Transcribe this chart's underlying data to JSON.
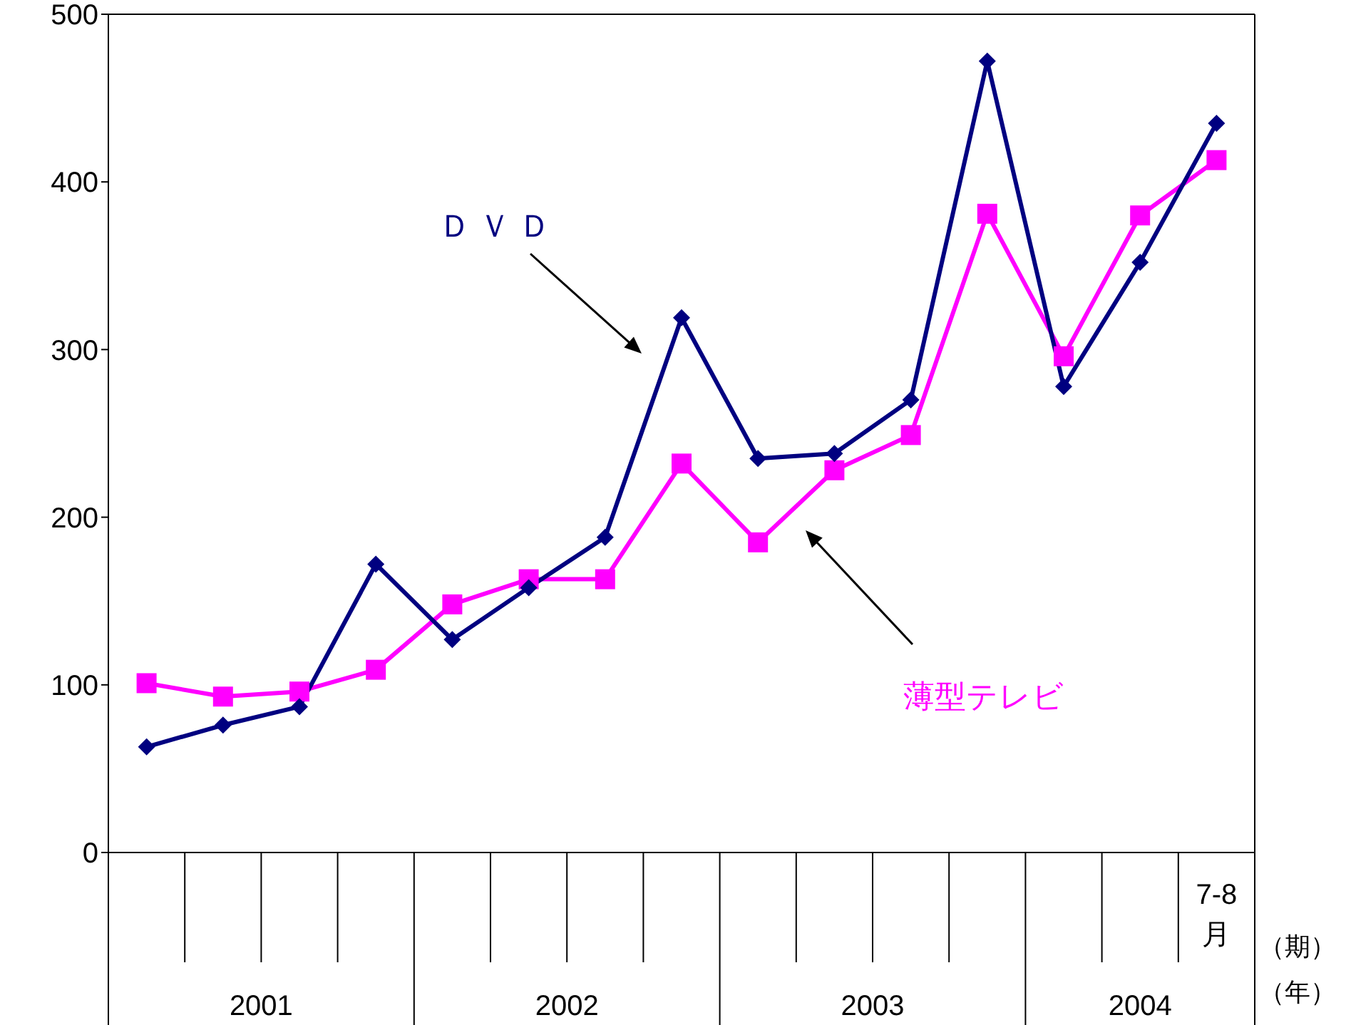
{
  "chart_data": {
    "type": "line",
    "categories": [
      null,
      null,
      null,
      null,
      null,
      null,
      null,
      null,
      null,
      null,
      null,
      null,
      null,
      null,
      "7-8\n月"
    ],
    "xlabel": "（期）",
    "annotations": [
      "2001",
      "2002",
      "2003",
      "2004",
      "（年）"
    ],
    "ylim": [
      0,
      500
    ],
    "yticks": [
      0,
      100,
      200,
      300,
      400,
      500
    ],
    "grid": false,
    "line_style": "solid",
    "series": [
      {
        "name": "ＤＶＤ",
        "color": "#000080",
        "marker": "diamond",
        "values": [
          63,
          76,
          87,
          172,
          127,
          158,
          188,
          319,
          235,
          238,
          270,
          472,
          278,
          352,
          435
        ]
      },
      {
        "name": "薄型テレビ",
        "color": "#ff00ff",
        "marker": "square",
        "values": [
          101,
          93,
          96,
          109,
          148,
          163,
          163,
          232,
          185,
          228,
          249,
          381,
          296,
          380,
          413
        ]
      }
    ]
  }
}
